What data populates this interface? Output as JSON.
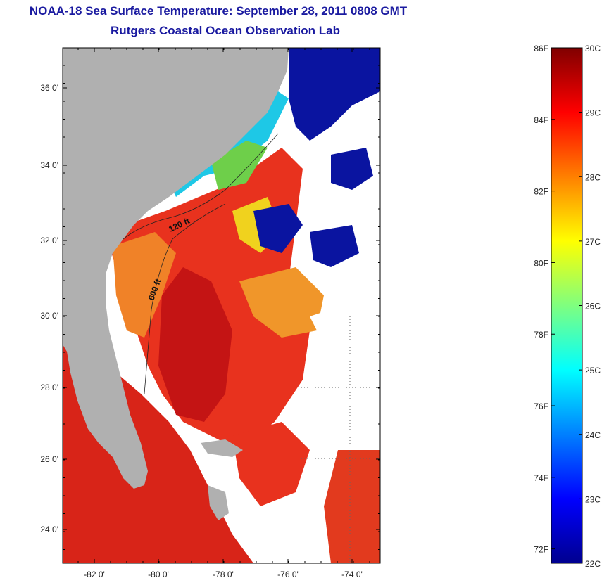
{
  "header": {
    "title": "NOAA-18 Sea Surface Temperature:  September 28, 2011 0808 GMT",
    "subtitle": "Rutgers Coastal Ocean Observation Lab"
  },
  "map": {
    "lat_ticks": [
      "36 0'",
      "34 0'",
      "32 0'",
      "30 0'",
      "28 0'",
      "26 0'",
      "24 0'"
    ],
    "lon_ticks": [
      "-82 0'",
      "-80 0'",
      "-78 0'",
      "-76 0'",
      "-74 0'"
    ],
    "contour_labels": [
      "120 ft",
      "600 ft"
    ],
    "colors": {
      "land": "#b0b0b0",
      "no_data": "#ffffff",
      "warm_water": "#e8321e",
      "hot_water": "#c41414",
      "orange_water": "#f08228",
      "yellow_water": "#f0d21e",
      "cyan_water": "#1ec8e6",
      "cold_water": "#0a14a0"
    }
  },
  "colorbar": {
    "f_labels": [
      "86F",
      "84F",
      "82F",
      "80F",
      "78F",
      "76F",
      "74F",
      "72F"
    ],
    "c_labels": [
      "30C",
      "29C",
      "28C",
      "27C",
      "26C",
      "25C",
      "24C",
      "23C",
      "22C"
    ],
    "range_c": [
      22,
      30
    ],
    "range_f": [
      72,
      86
    ]
  }
}
